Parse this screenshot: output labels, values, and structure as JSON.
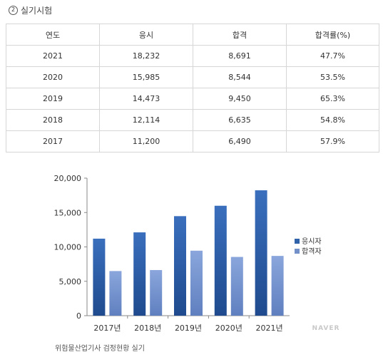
{
  "section": {
    "marker": "2",
    "title": "실기시험"
  },
  "table": {
    "headers": [
      "연도",
      "응시",
      "합격",
      "합격률(%)"
    ],
    "rows": [
      [
        "2021",
        "18,232",
        "8,691",
        "47.7%"
      ],
      [
        "2020",
        "15,985",
        "8,544",
        "53.5%"
      ],
      [
        "2019",
        "14,473",
        "9,450",
        "65.3%"
      ],
      [
        "2018",
        "12,114",
        "6,635",
        "54.8%"
      ],
      [
        "2017",
        "11,200",
        "6,490",
        "57.9%"
      ]
    ]
  },
  "chart_data": {
    "type": "bar",
    "categories": [
      "2017년",
      "2018년",
      "2019년",
      "2020년",
      "2021년"
    ],
    "series": [
      {
        "name": "응시자",
        "values": [
          11200,
          12114,
          14473,
          15985,
          18232
        ]
      },
      {
        "name": "합격자",
        "values": [
          6490,
          6635,
          9450,
          8544,
          8691
        ]
      }
    ],
    "y_ticks": [
      "0",
      "5,000",
      "10,000",
      "15,000",
      "20,000"
    ],
    "ylim": [
      0,
      20000
    ],
    "grid": false,
    "legend_position": "right",
    "colors": {
      "applicants": "#2f62a8",
      "passers": "#7390c8"
    }
  },
  "watermark": "NAVER",
  "caption": "위험물산업기사 검정현황 실기"
}
